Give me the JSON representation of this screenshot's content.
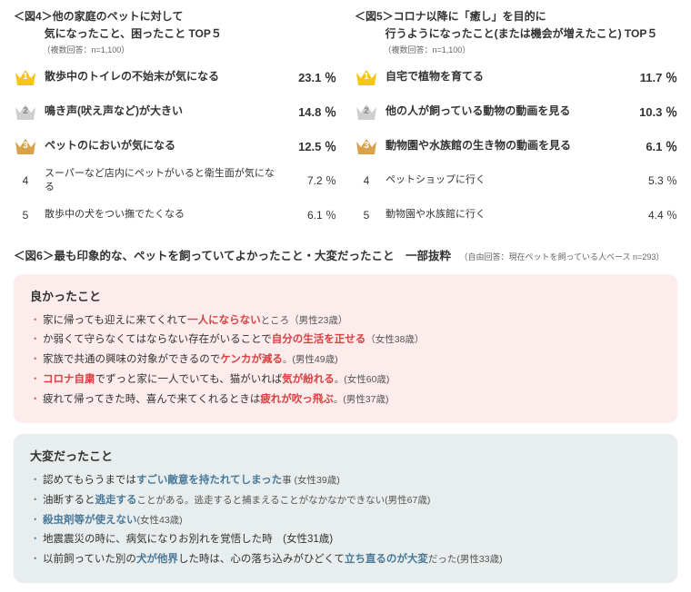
{
  "fig4": {
    "title_line1": "＜図4＞他の家庭のペットに対して",
    "title_line2": "気になったこと、困ったこと TOP５",
    "sub": "（複数回答：n=1,100）",
    "items": [
      {
        "rank": "1",
        "label": "散歩中のトイレの不始末が気になる",
        "pct": "23.1 ％",
        "crown_color": "#f5c518"
      },
      {
        "rank": "2",
        "label": "鳴き声(吠え声など)が大きい",
        "pct": "14.8 ％",
        "crown_color": "#cfcfcf"
      },
      {
        "rank": "3",
        "label": "ペットのにおいが気になる",
        "pct": "12.5 ％",
        "crown_color": "#d8a24a"
      },
      {
        "rank": "4",
        "label": "スーパーなど店内にペットがいると衛生面が気になる",
        "pct": "7.2 ％"
      },
      {
        "rank": "5",
        "label": "散歩中の犬をつい撫でたくなる",
        "pct": "6.1 ％"
      }
    ]
  },
  "fig5": {
    "title_line1": "＜図5＞コロナ以降に「癒し」を目的に",
    "title_line2": "行うようになったこと(または機会が増えたこと) TOP５",
    "sub": "（複数回答：n=1,100）",
    "items": [
      {
        "rank": "1",
        "label": "自宅で植物を育てる",
        "pct": "11.7 ％",
        "crown_color": "#f5c518"
      },
      {
        "rank": "2",
        "label": "他の人が飼っている動物の動画を見る",
        "pct": "10.3 ％",
        "crown_color": "#cfcfcf"
      },
      {
        "rank": "3",
        "label": "動物園や水族館の生き物の動画を見る",
        "pct": "6.1 ％",
        "crown_color": "#d8a24a"
      },
      {
        "rank": "4",
        "label": "ペットショップに行く",
        "pct": "5.3 ％"
      },
      {
        "rank": "5",
        "label": "動物園や水族館に行く",
        "pct": "4.4 ％"
      }
    ]
  },
  "fig6": {
    "title": "＜図6＞最も印象的な、ペットを飼っていてよかったこと・大変だったこと　一部抜粋",
    "sub": "（自由回答：現在ペットを飼っている人ベース n=293）",
    "good": {
      "heading": "良かったこと",
      "bg": "#fdecec",
      "bullet_color": "#e06060",
      "items": [
        {
          "pre": "家に帰っても迎えに来てくれて",
          "hl": "一人にならない",
          "post": "ところ（男性23歳）"
        },
        {
          "pre": "か弱くて守らなくてはならない存在がいることで",
          "hl": "自分の生活を正せる",
          "post": "（女性38歳）"
        },
        {
          "pre": "家族で共通の興味の対象ができるので",
          "hl": "ケンカが減る",
          "post": "。(男性49歳)"
        },
        {
          "pre": "",
          "hl": "コロナ自粛",
          "mid": "でずっと家に一人でいても、猫がいれば",
          "hl2": "気が紛れる",
          "post": "。(女性60歳)"
        },
        {
          "pre": "疲れて帰ってきた時、喜んで来てくれるときは",
          "hl": "疲れが吹っ飛ぶ",
          "post": "。(男性37歳)"
        }
      ]
    },
    "bad": {
      "heading": "大変だったこと",
      "bg": "#e8edee",
      "bullet_color": "#6a8a9a",
      "items": [
        {
          "pre": "認めてもらうまでは",
          "hl": "すごい敵意を持たれてしまった",
          "post": "事 (女性39歳)"
        },
        {
          "pre": "油断すると",
          "hl": "逃走する",
          "post": "ことがある。逃走すると捕まえることがなかなかできない(男性67歳)"
        },
        {
          "pre": "",
          "hl": "殺虫剤等が使えない",
          "post": "(女性43歳)"
        },
        {
          "pre": "地震震災の時に、病気になりお別れを覚悟した時　(女性31歳)",
          "hl": "",
          "post": ""
        },
        {
          "pre": "以前飼っていた別の",
          "hl": "犬が他界",
          "mid": "した時は、心の落ち込みがひどくて",
          "hl2": "立ち直るのが大変",
          "post": "だった(男性33歳)"
        }
      ]
    }
  },
  "hl_colors": {
    "red": "#d84040",
    "blue": "#4a7a9a"
  }
}
